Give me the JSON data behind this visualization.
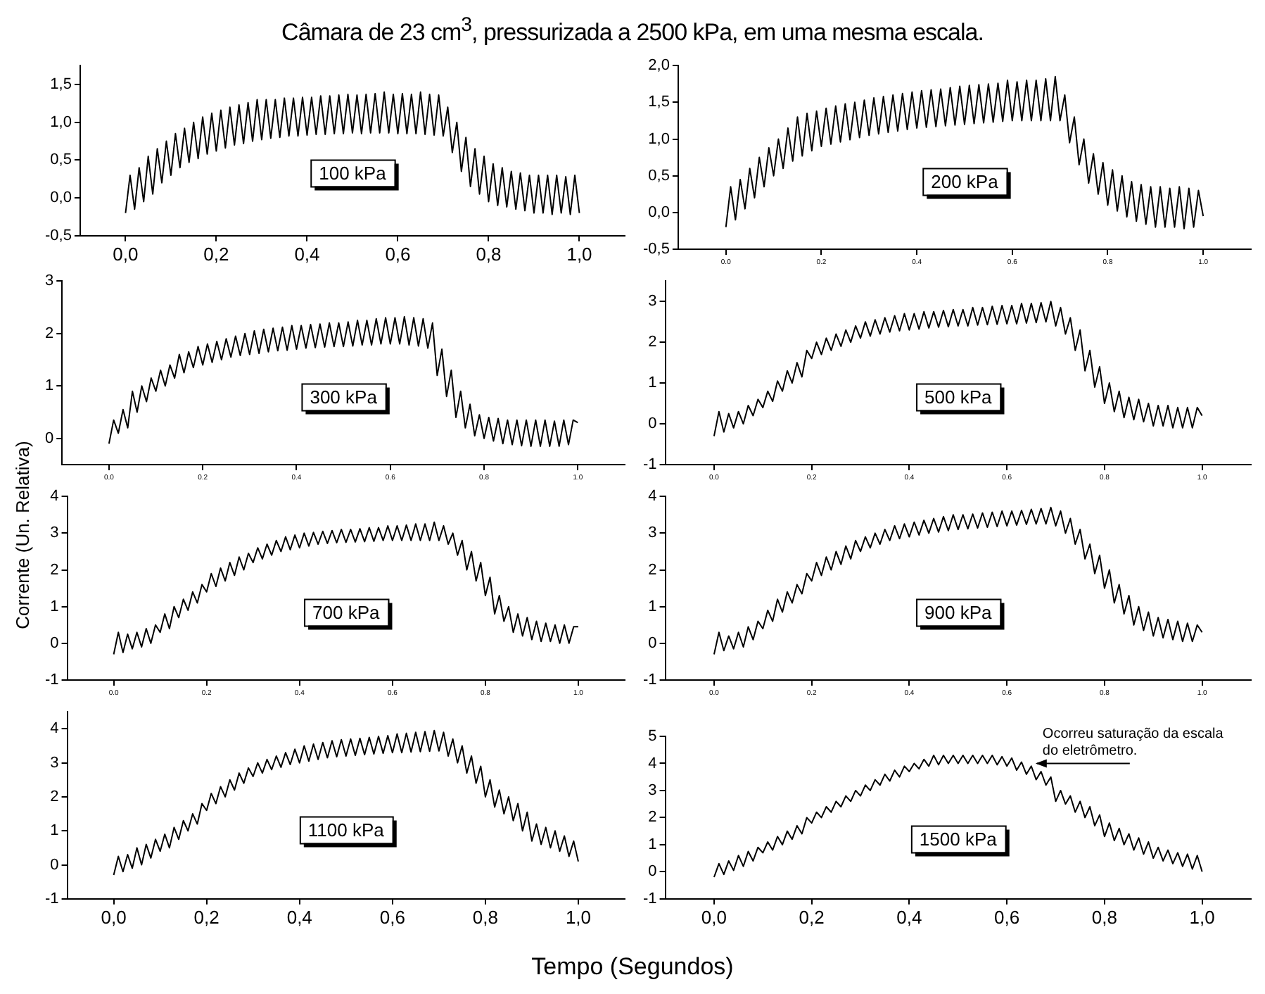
{
  "chart_data": [
    {
      "type": "line",
      "title": "Câmara de 23 cm$^{3}$, pressurizada a 2500 kPa, em uma mesma escala.",
      "xlabel": "Tempo (Segundos)",
      "grid": false,
      "line_style": "solid",
      "xlim": [
        -0.1,
        1.1
      ],
      "xticks": [
        {
          "value": 0,
          "label": "0,0"
        },
        {
          "value": 0.2,
          "label": "0,2"
        },
        {
          "value": 0.4,
          "label": "0,4"
        },
        {
          "value": 0.6,
          "label": "0,6"
        },
        {
          "value": 0.8,
          "label": "0,8"
        },
        {
          "value": 1,
          "label": "1,0"
        }
      ],
      "ylim": [
        -0.5,
        1.75
      ],
      "yticks": [
        {
          "value": -0.5,
          "label": "-0,5"
        },
        {
          "value": 0,
          "label": "0,0"
        },
        {
          "value": 0.5,
          "label": "0,5"
        },
        {
          "value": 1,
          "label": "1,0"
        },
        {
          "value": 1.5,
          "label": "1,5"
        }
      ],
      "annotations": [
        "100 kPa"
      ],
      "x": [
        0,
        0.01,
        0.02,
        0.03,
        0.04,
        0.05,
        0.06,
        0.07,
        0.08,
        0.09,
        0.1,
        0.11,
        0.12,
        0.13,
        0.14,
        0.15,
        0.16,
        0.17,
        0.18,
        0.19,
        0.2,
        0.21,
        0.22,
        0.23,
        0.24,
        0.25,
        0.26,
        0.27,
        0.28,
        0.29,
        0.3,
        0.31,
        0.32,
        0.33,
        0.34,
        0.35,
        0.36,
        0.37,
        0.38,
        0.39,
        0.4,
        0.41,
        0.42,
        0.43,
        0.44,
        0.45,
        0.46,
        0.47,
        0.48,
        0.49,
        0.5,
        0.51,
        0.52,
        0.53,
        0.54,
        0.55,
        0.56,
        0.57,
        0.58,
        0.59,
        0.6,
        0.61,
        0.62,
        0.63,
        0.64,
        0.65,
        0.66,
        0.67,
        0.68,
        0.69,
        0.7,
        0.71,
        0.72,
        0.73,
        0.74,
        0.75,
        0.76,
        0.77,
        0.78,
        0.79,
        0.8,
        0.81,
        0.82,
        0.83,
        0.84,
        0.85,
        0.86,
        0.87,
        0.88,
        0.89,
        0.9,
        0.91,
        0.92,
        0.93,
        0.94,
        0.95,
        0.96,
        0.97,
        0.98,
        0.99,
        1
      ],
      "series": [
        {
          "color": "#000000",
          "values": [
            -0.2,
            0.3,
            -0.15,
            0.4,
            -0.05,
            0.55,
            0.05,
            0.65,
            0.2,
            0.75,
            0.3,
            0.85,
            0.4,
            0.92,
            0.47,
            1.0,
            0.52,
            1.07,
            0.58,
            1.12,
            0.62,
            1.16,
            0.66,
            1.2,
            0.7,
            1.23,
            0.72,
            1.26,
            0.75,
            1.3,
            0.77,
            1.3,
            0.79,
            1.3,
            0.8,
            1.32,
            0.82,
            1.32,
            0.82,
            1.33,
            0.83,
            1.33,
            0.84,
            1.35,
            0.84,
            1.35,
            0.85,
            1.36,
            0.85,
            1.37,
            0.86,
            1.36,
            0.85,
            1.37,
            0.86,
            1.38,
            0.86,
            1.4,
            0.86,
            1.37,
            0.85,
            1.38,
            0.85,
            1.37,
            0.85,
            1.4,
            0.84,
            1.37,
            0.83,
            1.36,
            0.82,
            1.2,
            0.6,
            1.0,
            0.35,
            0.8,
            0.15,
            0.65,
            0.05,
            0.55,
            -0.05,
            0.45,
            -0.1,
            0.4,
            -0.12,
            0.35,
            -0.15,
            0.33,
            -0.17,
            0.3,
            -0.2,
            0.3,
            -0.2,
            0.3,
            -0.22,
            0.3,
            -0.2,
            0.28,
            -0.22,
            0.3,
            -0.2
          ]
        }
      ]
    },
    {
      "type": "line",
      "grid": false,
      "line_style": "solid",
      "xlim": [
        -0.1,
        1.1
      ],
      "xticks": [
        {
          "value": 0,
          "label": "0.0"
        },
        {
          "value": 0.2,
          "label": "0.2"
        },
        {
          "value": 0.4,
          "label": "0.4"
        },
        {
          "value": 0.6,
          "label": "0.6"
        },
        {
          "value": 0.8,
          "label": "0.8"
        },
        {
          "value": 1,
          "label": "1.0"
        }
      ],
      "ylim": [
        -0.5,
        2.0
      ],
      "yticks": [
        {
          "value": -0.5,
          "label": "-0,5"
        },
        {
          "value": 0,
          "label": "0,0"
        },
        {
          "value": 0.5,
          "label": "0,5"
        },
        {
          "value": 1,
          "label": "1,0"
        },
        {
          "value": 1.5,
          "label": "1,5"
        },
        {
          "value": 2,
          "label": "2,0"
        }
      ],
      "annotations": [
        "200 kPa"
      ],
      "x": [
        0,
        0.01,
        0.02,
        0.03,
        0.04,
        0.05,
        0.06,
        0.07,
        0.08,
        0.09,
        0.1,
        0.11,
        0.12,
        0.13,
        0.14,
        0.15,
        0.16,
        0.17,
        0.18,
        0.19,
        0.2,
        0.21,
        0.22,
        0.23,
        0.24,
        0.25,
        0.26,
        0.27,
        0.28,
        0.29,
        0.3,
        0.31,
        0.32,
        0.33,
        0.34,
        0.35,
        0.36,
        0.37,
        0.38,
        0.39,
        0.4,
        0.41,
        0.42,
        0.43,
        0.44,
        0.45,
        0.46,
        0.47,
        0.48,
        0.49,
        0.5,
        0.51,
        0.52,
        0.53,
        0.54,
        0.55,
        0.56,
        0.57,
        0.58,
        0.59,
        0.6,
        0.61,
        0.62,
        0.63,
        0.64,
        0.65,
        0.66,
        0.67,
        0.68,
        0.69,
        0.7,
        0.71,
        0.72,
        0.73,
        0.74,
        0.75,
        0.76,
        0.77,
        0.78,
        0.79,
        0.8,
        0.81,
        0.82,
        0.83,
        0.84,
        0.85,
        0.86,
        0.87,
        0.88,
        0.89,
        0.9,
        0.91,
        0.92,
        0.93,
        0.94,
        0.95,
        0.96,
        0.97,
        0.98,
        0.99,
        1
      ],
      "series": [
        {
          "color": "#000000",
          "values": [
            -0.2,
            0.35,
            -0.1,
            0.45,
            0.05,
            0.6,
            0.2,
            0.75,
            0.35,
            0.88,
            0.5,
            1.0,
            0.6,
            1.15,
            0.7,
            1.3,
            0.77,
            1.35,
            0.84,
            1.38,
            0.9,
            1.42,
            0.93,
            1.45,
            0.96,
            1.48,
            0.99,
            1.5,
            1.02,
            1.53,
            1.05,
            1.56,
            1.07,
            1.58,
            1.09,
            1.6,
            1.11,
            1.62,
            1.13,
            1.64,
            1.15,
            1.66,
            1.16,
            1.67,
            1.17,
            1.68,
            1.18,
            1.7,
            1.19,
            1.72,
            1.2,
            1.73,
            1.21,
            1.74,
            1.22,
            1.75,
            1.23,
            1.76,
            1.24,
            1.8,
            1.25,
            1.78,
            1.25,
            1.8,
            1.25,
            1.8,
            1.25,
            1.82,
            1.25,
            1.85,
            1.25,
            1.6,
            0.95,
            1.3,
            0.65,
            1.0,
            0.4,
            0.8,
            0.25,
            0.68,
            0.1,
            0.58,
            0.02,
            0.5,
            -0.06,
            0.42,
            -0.12,
            0.38,
            -0.16,
            0.35,
            -0.2,
            0.35,
            -0.2,
            0.33,
            -0.2,
            0.35,
            -0.22,
            0.33,
            -0.2,
            0.3,
            -0.05
          ]
        }
      ]
    },
    {
      "type": "line",
      "grid": false,
      "line_style": "solid",
      "xlim": [
        -0.1,
        1.1
      ],
      "xticks": [
        {
          "value": 0,
          "label": "0.0"
        },
        {
          "value": 0.2,
          "label": "0.2"
        },
        {
          "value": 0.4,
          "label": "0.4"
        },
        {
          "value": 0.6,
          "label": "0.6"
        },
        {
          "value": 0.8,
          "label": "0.8"
        },
        {
          "value": 1,
          "label": "1.0"
        }
      ],
      "ylim": [
        -0.5,
        3
      ],
      "yticks": [
        0,
        1,
        2,
        3
      ],
      "annotations": [
        "300 kPa"
      ],
      "x": [
        0,
        0.01,
        0.02,
        0.03,
        0.04,
        0.05,
        0.06,
        0.07,
        0.08,
        0.09,
        0.1,
        0.11,
        0.12,
        0.13,
        0.14,
        0.15,
        0.16,
        0.17,
        0.18,
        0.19,
        0.2,
        0.21,
        0.22,
        0.23,
        0.24,
        0.25,
        0.26,
        0.27,
        0.28,
        0.29,
        0.3,
        0.31,
        0.32,
        0.33,
        0.34,
        0.35,
        0.36,
        0.37,
        0.38,
        0.39,
        0.4,
        0.41,
        0.42,
        0.43,
        0.44,
        0.45,
        0.46,
        0.47,
        0.48,
        0.49,
        0.5,
        0.51,
        0.52,
        0.53,
        0.54,
        0.55,
        0.56,
        0.57,
        0.58,
        0.59,
        0.6,
        0.61,
        0.62,
        0.63,
        0.64,
        0.65,
        0.66,
        0.67,
        0.68,
        0.69,
        0.7,
        0.71,
        0.72,
        0.73,
        0.74,
        0.75,
        0.76,
        0.77,
        0.78,
        0.79,
        0.8,
        0.81,
        0.82,
        0.83,
        0.84,
        0.85,
        0.86,
        0.87,
        0.88,
        0.89,
        0.9,
        0.91,
        0.92,
        0.93,
        0.94,
        0.95,
        0.96,
        0.97,
        0.98,
        0.99,
        1
      ],
      "series": [
        {
          "color": "#000000",
          "values": [
            -0.1,
            0.35,
            0.1,
            0.55,
            0.2,
            0.9,
            0.5,
            1.0,
            0.7,
            1.15,
            0.9,
            1.3,
            1.0,
            1.4,
            1.15,
            1.6,
            1.25,
            1.65,
            1.35,
            1.75,
            1.4,
            1.8,
            1.45,
            1.85,
            1.5,
            1.9,
            1.55,
            1.95,
            1.58,
            2.0,
            1.6,
            2.05,
            1.62,
            2.08,
            1.65,
            2.1,
            1.67,
            2.12,
            1.68,
            2.15,
            1.7,
            2.15,
            1.72,
            2.17,
            1.73,
            2.18,
            1.74,
            2.2,
            1.75,
            2.2,
            1.75,
            2.22,
            1.76,
            2.25,
            1.78,
            2.25,
            1.78,
            2.28,
            1.8,
            2.3,
            1.8,
            2.3,
            1.8,
            2.32,
            1.78,
            2.3,
            1.76,
            2.28,
            1.72,
            2.2,
            1.2,
            1.7,
            0.8,
            1.3,
            0.4,
            0.9,
            0.2,
            0.65,
            0.05,
            0.45,
            0.0,
            0.4,
            -0.05,
            0.38,
            -0.1,
            0.35,
            -0.12,
            0.35,
            -0.14,
            0.35,
            -0.15,
            0.35,
            -0.15,
            0.35,
            -0.15,
            0.33,
            -0.15,
            0.35,
            -0.12,
            0.35,
            0.3
          ]
        }
      ]
    },
    {
      "type": "line",
      "grid": false,
      "line_style": "solid",
      "xlim": [
        -0.1,
        1.1
      ],
      "xticks": [
        {
          "value": 0,
          "label": "0.0"
        },
        {
          "value": 0.2,
          "label": "0.2"
        },
        {
          "value": 0.4,
          "label": "0.4"
        },
        {
          "value": 0.6,
          "label": "0.6"
        },
        {
          "value": 0.8,
          "label": "0.8"
        },
        {
          "value": 1,
          "label": "1.0"
        }
      ],
      "ylim": [
        -1,
        3.5
      ],
      "yticks": [
        -1,
        0,
        1,
        2,
        3
      ],
      "annotations": [
        "500 kPa"
      ],
      "x": [
        0,
        0.01,
        0.02,
        0.03,
        0.04,
        0.05,
        0.06,
        0.07,
        0.08,
        0.09,
        0.1,
        0.11,
        0.12,
        0.13,
        0.14,
        0.15,
        0.16,
        0.17,
        0.18,
        0.19,
        0.2,
        0.21,
        0.22,
        0.23,
        0.24,
        0.25,
        0.26,
        0.27,
        0.28,
        0.29,
        0.3,
        0.31,
        0.32,
        0.33,
        0.34,
        0.35,
        0.36,
        0.37,
        0.38,
        0.39,
        0.4,
        0.41,
        0.42,
        0.43,
        0.44,
        0.45,
        0.46,
        0.47,
        0.48,
        0.49,
        0.5,
        0.51,
        0.52,
        0.53,
        0.54,
        0.55,
        0.56,
        0.57,
        0.58,
        0.59,
        0.6,
        0.61,
        0.62,
        0.63,
        0.64,
        0.65,
        0.66,
        0.67,
        0.68,
        0.69,
        0.7,
        0.71,
        0.72,
        0.73,
        0.74,
        0.75,
        0.76,
        0.77,
        0.78,
        0.79,
        0.8,
        0.81,
        0.82,
        0.83,
        0.84,
        0.85,
        0.86,
        0.87,
        0.88,
        0.89,
        0.9,
        0.91,
        0.92,
        0.93,
        0.94,
        0.95,
        0.96,
        0.97,
        0.98,
        0.99,
        1
      ],
      "series": [
        {
          "color": "#000000",
          "values": [
            -0.3,
            0.3,
            -0.2,
            0.25,
            -0.1,
            0.3,
            0.0,
            0.45,
            0.2,
            0.6,
            0.4,
            0.8,
            0.55,
            1.05,
            0.8,
            1.3,
            1.0,
            1.5,
            1.15,
            1.8,
            1.6,
            2.0,
            1.7,
            2.1,
            1.8,
            2.2,
            1.9,
            2.3,
            2.0,
            2.4,
            2.1,
            2.5,
            2.15,
            2.55,
            2.2,
            2.6,
            2.25,
            2.65,
            2.28,
            2.7,
            2.3,
            2.7,
            2.32,
            2.75,
            2.35,
            2.75,
            2.37,
            2.78,
            2.38,
            2.8,
            2.4,
            2.8,
            2.4,
            2.85,
            2.42,
            2.85,
            2.43,
            2.88,
            2.44,
            2.9,
            2.45,
            2.9,
            2.45,
            2.95,
            2.47,
            2.95,
            2.48,
            2.97,
            2.5,
            3.0,
            2.4,
            2.85,
            2.2,
            2.6,
            1.8,
            2.3,
            1.3,
            1.8,
            0.9,
            1.4,
            0.5,
            1.0,
            0.3,
            0.8,
            0.15,
            0.65,
            0.1,
            0.6,
            0.05,
            0.5,
            -0.05,
            0.45,
            -0.05,
            0.45,
            -0.1,
            0.4,
            -0.1,
            0.4,
            -0.1,
            0.4,
            0.2
          ]
        }
      ]
    },
    {
      "type": "line",
      "grid": false,
      "line_style": "solid",
      "xlim": [
        -0.1,
        1.1
      ],
      "xticks": [
        {
          "value": 0,
          "label": "0.0"
        },
        {
          "value": 0.2,
          "label": "0.2"
        },
        {
          "value": 0.4,
          "label": "0.4"
        },
        {
          "value": 0.6,
          "label": "0.6"
        },
        {
          "value": 0.8,
          "label": "0.8"
        },
        {
          "value": 1,
          "label": "1.0"
        }
      ],
      "ylim": [
        -1,
        4
      ],
      "yticks": [
        -1,
        0,
        1,
        2,
        3,
        4
      ],
      "ylabel": "Corrente (Un. Relativa)",
      "annotations": [
        "700 kPa"
      ],
      "x": [
        0,
        0.01,
        0.02,
        0.03,
        0.04,
        0.05,
        0.06,
        0.07,
        0.08,
        0.09,
        0.1,
        0.11,
        0.12,
        0.13,
        0.14,
        0.15,
        0.16,
        0.17,
        0.18,
        0.19,
        0.2,
        0.21,
        0.22,
        0.23,
        0.24,
        0.25,
        0.26,
        0.27,
        0.28,
        0.29,
        0.3,
        0.31,
        0.32,
        0.33,
        0.34,
        0.35,
        0.36,
        0.37,
        0.38,
        0.39,
        0.4,
        0.41,
        0.42,
        0.43,
        0.44,
        0.45,
        0.46,
        0.47,
        0.48,
        0.49,
        0.5,
        0.51,
        0.52,
        0.53,
        0.54,
        0.55,
        0.56,
        0.57,
        0.58,
        0.59,
        0.6,
        0.61,
        0.62,
        0.63,
        0.64,
        0.65,
        0.66,
        0.67,
        0.68,
        0.69,
        0.7,
        0.71,
        0.72,
        0.73,
        0.74,
        0.75,
        0.76,
        0.77,
        0.78,
        0.79,
        0.8,
        0.81,
        0.82,
        0.83,
        0.84,
        0.85,
        0.86,
        0.87,
        0.88,
        0.89,
        0.9,
        0.91,
        0.92,
        0.93,
        0.94,
        0.95,
        0.96,
        0.97,
        0.98,
        0.99,
        1
      ],
      "series": [
        {
          "color": "#000000",
          "values": [
            -0.3,
            0.3,
            -0.25,
            0.25,
            -0.15,
            0.3,
            -0.1,
            0.4,
            0.0,
            0.5,
            0.3,
            0.8,
            0.4,
            1.0,
            0.7,
            1.2,
            0.9,
            1.4,
            1.1,
            1.6,
            1.4,
            1.9,
            1.55,
            2.05,
            1.7,
            2.2,
            1.85,
            2.35,
            2.0,
            2.45,
            2.2,
            2.6,
            2.3,
            2.7,
            2.4,
            2.8,
            2.5,
            2.9,
            2.55,
            2.95,
            2.6,
            3.0,
            2.65,
            3.02,
            2.7,
            3.05,
            2.72,
            3.07,
            2.74,
            3.1,
            2.75,
            3.1,
            2.76,
            3.12,
            2.77,
            3.15,
            2.78,
            3.15,
            2.8,
            3.2,
            2.8,
            3.2,
            2.8,
            3.22,
            2.8,
            3.25,
            2.8,
            3.25,
            2.8,
            3.3,
            2.8,
            3.2,
            2.7,
            3.0,
            2.4,
            2.8,
            2.0,
            2.5,
            1.7,
            2.2,
            1.3,
            1.8,
            0.8,
            1.3,
            0.6,
            1.0,
            0.3,
            0.8,
            0.2,
            0.7,
            0.1,
            0.6,
            0.05,
            0.55,
            0.05,
            0.5,
            0.0,
            0.5,
            0.0,
            0.45,
            0.45
          ]
        }
      ]
    },
    {
      "type": "line",
      "grid": false,
      "line_style": "solid",
      "xlim": [
        -0.1,
        1.1
      ],
      "xticks": [
        {
          "value": 0,
          "label": "0.0"
        },
        {
          "value": 0.2,
          "label": "0.2"
        },
        {
          "value": 0.4,
          "label": "0.4"
        },
        {
          "value": 0.6,
          "label": "0.6"
        },
        {
          "value": 0.8,
          "label": "0.8"
        },
        {
          "value": 1,
          "label": "1.0"
        }
      ],
      "ylim": [
        -1,
        4
      ],
      "yticks": [
        -1,
        0,
        1,
        2,
        3,
        4
      ],
      "annotations": [
        "900 kPa"
      ],
      "x": [
        0,
        0.01,
        0.02,
        0.03,
        0.04,
        0.05,
        0.06,
        0.07,
        0.08,
        0.09,
        0.1,
        0.11,
        0.12,
        0.13,
        0.14,
        0.15,
        0.16,
        0.17,
        0.18,
        0.19,
        0.2,
        0.21,
        0.22,
        0.23,
        0.24,
        0.25,
        0.26,
        0.27,
        0.28,
        0.29,
        0.3,
        0.31,
        0.32,
        0.33,
        0.34,
        0.35,
        0.36,
        0.37,
        0.38,
        0.39,
        0.4,
        0.41,
        0.42,
        0.43,
        0.44,
        0.45,
        0.46,
        0.47,
        0.48,
        0.49,
        0.5,
        0.51,
        0.52,
        0.53,
        0.54,
        0.55,
        0.56,
        0.57,
        0.58,
        0.59,
        0.6,
        0.61,
        0.62,
        0.63,
        0.64,
        0.65,
        0.66,
        0.67,
        0.68,
        0.69,
        0.7,
        0.71,
        0.72,
        0.73,
        0.74,
        0.75,
        0.76,
        0.77,
        0.78,
        0.79,
        0.8,
        0.81,
        0.82,
        0.83,
        0.84,
        0.85,
        0.86,
        0.87,
        0.88,
        0.89,
        0.9,
        0.91,
        0.92,
        0.93,
        0.94,
        0.95,
        0.96,
        0.97,
        0.98,
        0.99,
        1
      ],
      "series": [
        {
          "color": "#000000",
          "values": [
            -0.3,
            0.3,
            -0.2,
            0.2,
            -0.15,
            0.3,
            -0.1,
            0.45,
            0.1,
            0.6,
            0.4,
            0.9,
            0.6,
            1.2,
            0.85,
            1.4,
            1.1,
            1.6,
            1.35,
            1.9,
            1.7,
            2.2,
            1.85,
            2.35,
            2.0,
            2.5,
            2.15,
            2.65,
            2.3,
            2.8,
            2.5,
            2.9,
            2.6,
            3.0,
            2.7,
            3.1,
            2.8,
            3.2,
            2.85,
            3.25,
            2.9,
            3.3,
            2.95,
            3.35,
            3.0,
            3.4,
            3.03,
            3.45,
            3.07,
            3.5,
            3.1,
            3.5,
            3.12,
            3.52,
            3.14,
            3.55,
            3.16,
            3.57,
            3.18,
            3.6,
            3.2,
            3.6,
            3.22,
            3.62,
            3.24,
            3.65,
            3.25,
            3.67,
            3.25,
            3.7,
            3.2,
            3.6,
            3.0,
            3.4,
            2.7,
            3.1,
            2.3,
            2.7,
            1.9,
            2.4,
            1.5,
            2.0,
            1.1,
            1.6,
            0.8,
            1.3,
            0.5,
            1.0,
            0.35,
            0.85,
            0.2,
            0.7,
            0.15,
            0.65,
            0.1,
            0.6,
            0.05,
            0.55,
            0.05,
            0.5,
            0.3
          ]
        }
      ]
    },
    {
      "type": "line",
      "grid": false,
      "line_style": "solid",
      "xlim": [
        -0.1,
        1.1
      ],
      "xticks": [
        {
          "value": 0,
          "label": "0,0"
        },
        {
          "value": 0.2,
          "label": "0,2"
        },
        {
          "value": 0.4,
          "label": "0,4"
        },
        {
          "value": 0.6,
          "label": "0,6"
        },
        {
          "value": 0.8,
          "label": "0,8"
        },
        {
          "value": 1,
          "label": "1,0"
        }
      ],
      "ylim": [
        -1,
        4.5
      ],
      "yticks": [
        -1,
        0,
        1,
        2,
        3,
        4
      ],
      "annotations": [
        "1100 kPa"
      ],
      "x": [
        0,
        0.01,
        0.02,
        0.03,
        0.04,
        0.05,
        0.06,
        0.07,
        0.08,
        0.09,
        0.1,
        0.11,
        0.12,
        0.13,
        0.14,
        0.15,
        0.16,
        0.17,
        0.18,
        0.19,
        0.2,
        0.21,
        0.22,
        0.23,
        0.24,
        0.25,
        0.26,
        0.27,
        0.28,
        0.29,
        0.3,
        0.31,
        0.32,
        0.33,
        0.34,
        0.35,
        0.36,
        0.37,
        0.38,
        0.39,
        0.4,
        0.41,
        0.42,
        0.43,
        0.44,
        0.45,
        0.46,
        0.47,
        0.48,
        0.49,
        0.5,
        0.51,
        0.52,
        0.53,
        0.54,
        0.55,
        0.56,
        0.57,
        0.58,
        0.59,
        0.6,
        0.61,
        0.62,
        0.63,
        0.64,
        0.65,
        0.66,
        0.67,
        0.68,
        0.69,
        0.7,
        0.71,
        0.72,
        0.73,
        0.74,
        0.75,
        0.76,
        0.77,
        0.78,
        0.79,
        0.8,
        0.81,
        0.82,
        0.83,
        0.84,
        0.85,
        0.86,
        0.87,
        0.88,
        0.89,
        0.9,
        0.91,
        0.92,
        0.93,
        0.94,
        0.95,
        0.96,
        0.97,
        0.98,
        0.99,
        1
      ],
      "series": [
        {
          "color": "#000000",
          "values": [
            -0.3,
            0.25,
            -0.2,
            0.3,
            -0.1,
            0.5,
            0.0,
            0.6,
            0.2,
            0.75,
            0.4,
            0.9,
            0.5,
            1.1,
            0.75,
            1.3,
            1.0,
            1.5,
            1.2,
            1.8,
            1.6,
            2.1,
            1.8,
            2.3,
            2.0,
            2.5,
            2.2,
            2.7,
            2.4,
            2.85,
            2.6,
            3.0,
            2.7,
            3.1,
            2.8,
            3.2,
            2.87,
            3.3,
            2.95,
            3.4,
            3.0,
            3.5,
            3.05,
            3.55,
            3.1,
            3.6,
            3.15,
            3.65,
            3.18,
            3.68,
            3.2,
            3.7,
            3.22,
            3.72,
            3.24,
            3.75,
            3.26,
            3.78,
            3.28,
            3.8,
            3.3,
            3.85,
            3.3,
            3.87,
            3.32,
            3.9,
            3.33,
            3.92,
            3.34,
            3.95,
            3.35,
            3.9,
            3.2,
            3.7,
            3.0,
            3.5,
            2.7,
            3.2,
            2.4,
            2.9,
            2.0,
            2.5,
            1.7,
            2.2,
            1.5,
            2.0,
            1.3,
            1.8,
            1.0,
            1.55,
            0.7,
            1.2,
            0.6,
            1.1,
            0.5,
            1.0,
            0.4,
            0.85,
            0.25,
            0.7,
            0.1
          ]
        }
      ]
    },
    {
      "type": "line",
      "grid": false,
      "line_style": "solid",
      "xlim": [
        -0.1,
        1.1
      ],
      "xticks": [
        {
          "value": 0,
          "label": "0,0"
        },
        {
          "value": 0.2,
          "label": "0,2"
        },
        {
          "value": 0.4,
          "label": "0,4"
        },
        {
          "value": 0.6,
          "label": "0,6"
        },
        {
          "value": 0.8,
          "label": "0,8"
        },
        {
          "value": 1,
          "label": "1,0"
        }
      ],
      "ylim": [
        -1,
        5
      ],
      "yticks": [
        -1,
        0,
        1,
        2,
        3,
        4,
        5
      ],
      "annotations": [
        "1500 kPa",
        {
          "text": "Ocorreu saturação da escala do eletrômetro.",
          "x": 0.65,
          "y": 4.0
        }
      ],
      "x": [
        0,
        0.01,
        0.02,
        0.03,
        0.04,
        0.05,
        0.06,
        0.07,
        0.08,
        0.09,
        0.1,
        0.11,
        0.12,
        0.13,
        0.14,
        0.15,
        0.16,
        0.17,
        0.18,
        0.19,
        0.2,
        0.21,
        0.22,
        0.23,
        0.24,
        0.25,
        0.26,
        0.27,
        0.28,
        0.29,
        0.3,
        0.31,
        0.32,
        0.33,
        0.34,
        0.35,
        0.36,
        0.37,
        0.38,
        0.39,
        0.4,
        0.41,
        0.42,
        0.43,
        0.44,
        0.45,
        0.46,
        0.47,
        0.48,
        0.49,
        0.5,
        0.51,
        0.52,
        0.53,
        0.54,
        0.55,
        0.56,
        0.57,
        0.58,
        0.59,
        0.6,
        0.61,
        0.62,
        0.63,
        0.64,
        0.65,
        0.66,
        0.67,
        0.68,
        0.69,
        0.7,
        0.71,
        0.72,
        0.73,
        0.74,
        0.75,
        0.76,
        0.77,
        0.78,
        0.79,
        0.8,
        0.81,
        0.82,
        0.83,
        0.84,
        0.85,
        0.86,
        0.87,
        0.88,
        0.89,
        0.9,
        0.91,
        0.92,
        0.93,
        0.94,
        0.95,
        0.96,
        0.97,
        0.98,
        0.99,
        1
      ],
      "series": [
        {
          "color": "#000000",
          "values": [
            -0.2,
            0.3,
            -0.1,
            0.4,
            0.05,
            0.6,
            0.2,
            0.75,
            0.4,
            0.9,
            0.7,
            1.1,
            0.8,
            1.3,
            1.0,
            1.5,
            1.2,
            1.7,
            1.4,
            2.0,
            1.8,
            2.2,
            2.0,
            2.4,
            2.2,
            2.6,
            2.4,
            2.8,
            2.6,
            3.0,
            2.8,
            3.2,
            3.0,
            3.4,
            3.2,
            3.6,
            3.35,
            3.75,
            3.5,
            3.9,
            3.7,
            4.0,
            3.8,
            4.15,
            3.9,
            4.3,
            3.95,
            4.3,
            4.0,
            4.3,
            4.0,
            4.3,
            4.0,
            4.3,
            4.0,
            4.3,
            4.0,
            4.3,
            3.95,
            4.25,
            3.9,
            4.2,
            3.75,
            4.05,
            3.6,
            3.9,
            3.4,
            3.7,
            3.2,
            3.5,
            2.6,
            3.0,
            2.5,
            2.8,
            2.2,
            2.6,
            2.0,
            2.4,
            1.7,
            2.1,
            1.3,
            1.8,
            1.15,
            1.6,
            1.0,
            1.4,
            0.8,
            1.25,
            0.65,
            1.1,
            0.5,
            0.9,
            0.4,
            0.8,
            0.3,
            0.7,
            0.2,
            0.65,
            0.1,
            0.6,
            0.0
          ]
        }
      ]
    }
  ]
}
